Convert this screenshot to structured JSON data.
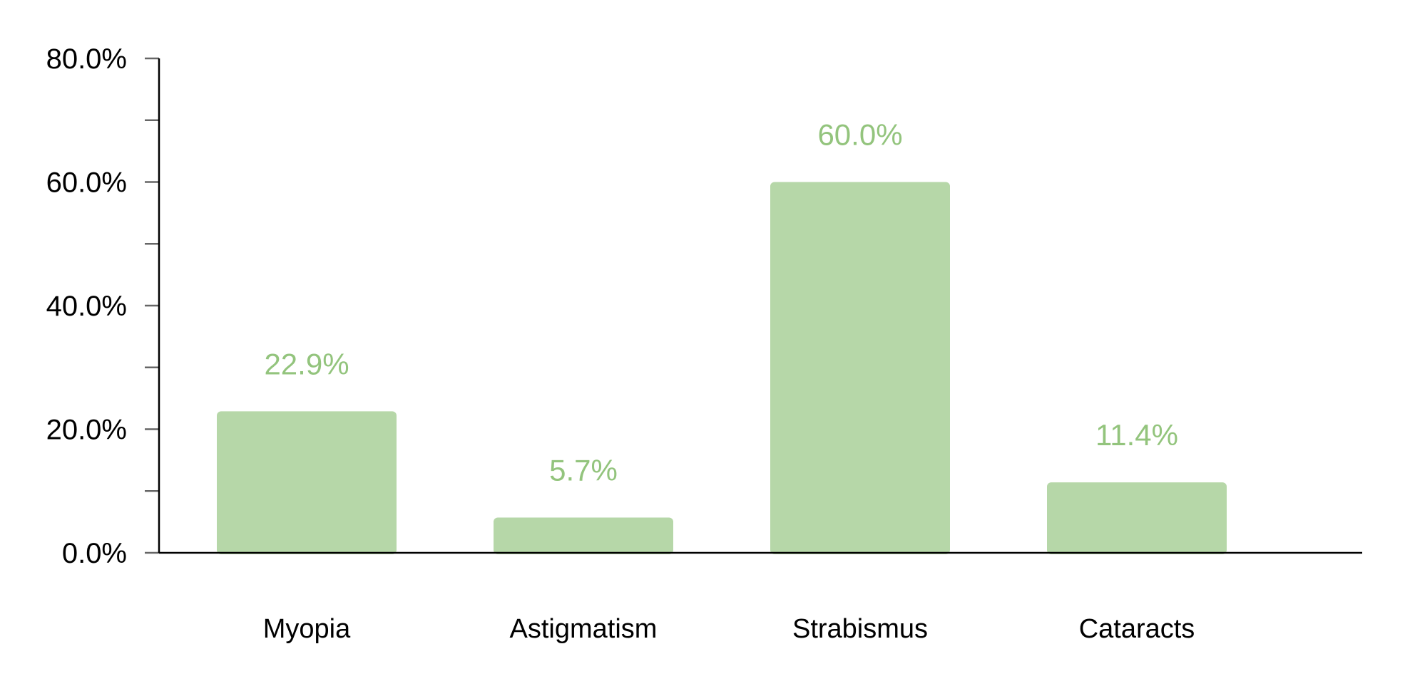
{
  "chart_data": {
    "type": "bar",
    "categories": [
      "Myopia",
      "Astigmatism",
      "Strabismus",
      "Cataracts"
    ],
    "values": [
      22.9,
      5.7,
      60.0,
      11.4
    ],
    "data_labels": [
      "22.9%",
      "5.7%",
      "60.0%",
      "11.4%"
    ],
    "ylim": [
      0,
      80
    ],
    "y_ticks": [
      0,
      20,
      40,
      60,
      80
    ],
    "y_minor_ticks": [
      10,
      30,
      50,
      70
    ],
    "y_tick_labels": [
      "0.0%",
      "20.0%",
      "40.0%",
      "60.0%",
      "80.0%"
    ],
    "grid": false,
    "legend": "none",
    "colors": {
      "bar": "#b6d7a8",
      "data_label": "#93c47d",
      "axis": "#000000",
      "tick": "#666666"
    }
  }
}
